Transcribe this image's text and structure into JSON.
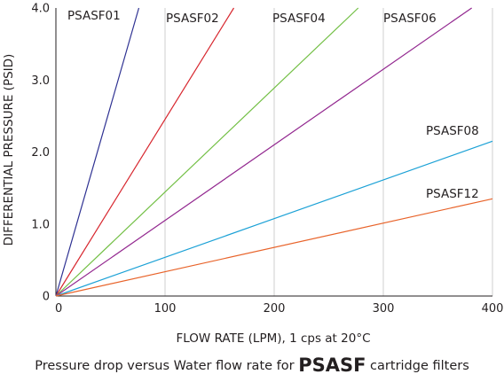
{
  "chart_data": {
    "type": "line",
    "title": "",
    "xlabel": "FLOW RATE (LPM), 1 cps at 20°C",
    "ylabel": "DIFFERENTIAL PRESSURE (PSID)",
    "xlim": [
      0,
      400
    ],
    "ylim": [
      0,
      4.0
    ],
    "x_ticks": [
      "0",
      "100",
      "200",
      "300",
      "400"
    ],
    "y_ticks": [
      "0",
      "1.0",
      "2.0",
      "3.0",
      "4.0"
    ],
    "grid": "vertical",
    "legend": "inline labels",
    "series": [
      {
        "name": "PSASF01",
        "color": "#2e3192",
        "x": [
          0,
          76
        ],
        "y": [
          0,
          4.0
        ]
      },
      {
        "name": "PSASF02",
        "color": "#d7262e",
        "x": [
          0,
          163
        ],
        "y": [
          0,
          4.0
        ]
      },
      {
        "name": "PSASF04",
        "color": "#72bf44",
        "x": [
          0,
          277
        ],
        "y": [
          0,
          4.0
        ]
      },
      {
        "name": "PSASF06",
        "color": "#92278f",
        "x": [
          0,
          381
        ],
        "y": [
          0,
          4.0
        ]
      },
      {
        "name": "PSASF08",
        "color": "#1ba1d6",
        "x": [
          0,
          400
        ],
        "y": [
          0,
          2.15
        ]
      },
      {
        "name": "PSASF12",
        "color": "#e8632a",
        "x": [
          0,
          400
        ],
        "y": [
          0,
          1.35
        ]
      }
    ]
  },
  "caption": {
    "before": "Pressure drop versus Water flow rate for ",
    "strong": "PSASF",
    "after": " cartridge filters"
  }
}
